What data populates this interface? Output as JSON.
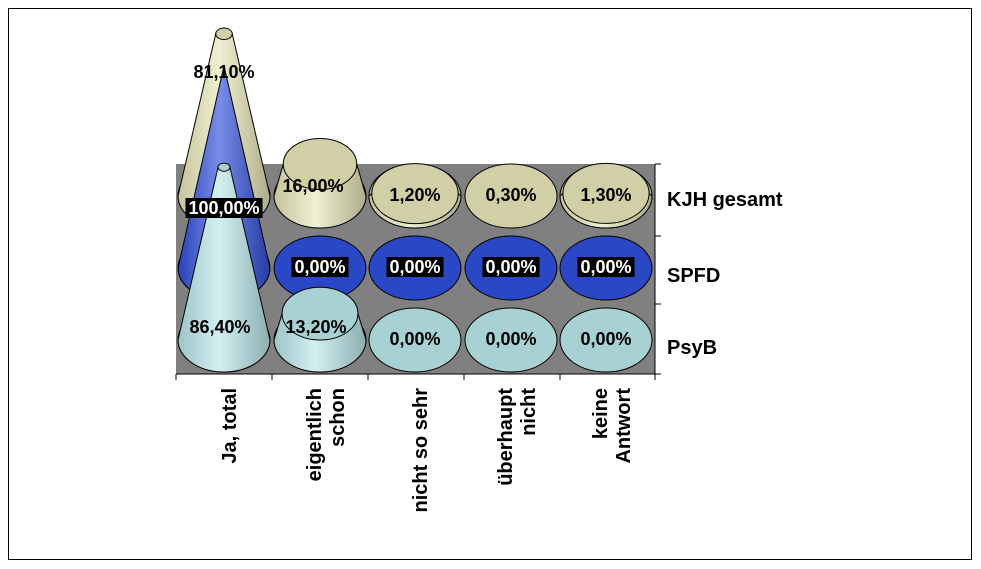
{
  "chart_data": {
    "type": "bar",
    "bar_shape": "3d-cone",
    "categories": [
      "Ja, total",
      "eigentlich schon",
      "nicht so sehr",
      "überhaupt nicht",
      "keine Antwort"
    ],
    "category_labels": [
      [
        "Ja, total"
      ],
      [
        "eigentlich",
        "schon"
      ],
      [
        "nicht so sehr"
      ],
      [
        "überhaupt",
        "nicht"
      ],
      [
        "keine",
        "Antwort"
      ]
    ],
    "series": [
      {
        "name": "KJH gesamt",
        "values": [
          81.1,
          16.0,
          1.2,
          0.3,
          1.3
        ],
        "labels": [
          "81,10%",
          "16,00%",
          "1,20%",
          "0,30%",
          "1,30%"
        ],
        "color": "#e8e6b8"
      },
      {
        "name": "SPFD",
        "values": [
          100.0,
          0.0,
          0.0,
          0.0,
          0.0
        ],
        "labels": [
          "100,00%",
          "0,00%",
          "0,00%",
          "0,00%",
          "0,00%"
        ],
        "color": "#2f4fdc"
      },
      {
        "name": "PsyB",
        "values": [
          86.4,
          13.2,
          0.0,
          0.0,
          0.0
        ],
        "labels": [
          "86,40%",
          "13,20%",
          "0,00%",
          "0,00%",
          "0,00%"
        ],
        "color": "#b9e8ea"
      }
    ],
    "ylim": [
      0,
      100
    ],
    "wall_color": "#808080",
    "legend": "series labels at right of depth rows",
    "grid": false
  }
}
